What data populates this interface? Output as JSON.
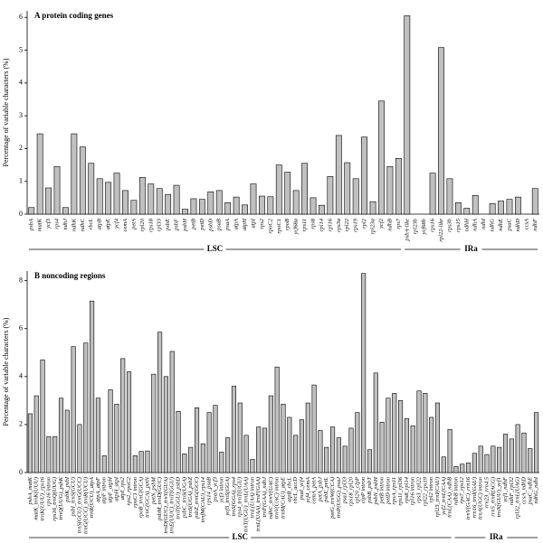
{
  "chart_data": [
    {
      "type": "bar",
      "title": "A protein coding genes",
      "ylabel": "Percentage of variable characters (%)",
      "color": "#c0c0c0",
      "ylim": [
        0,
        6.2
      ],
      "yticks": [
        0,
        1,
        2,
        3,
        4,
        5,
        6
      ],
      "groups": [
        {
          "name": "LSC",
          "categories": [
            "psbA",
            "matK",
            "ycf3",
            "rps4",
            "ndhJ",
            "ndhK",
            "ndhC",
            "rbcL",
            "atpB",
            "atpE",
            "ycf4",
            "cemA",
            "petA",
            "rpl20",
            "rps18",
            "rpl33",
            "psbE",
            "psbF",
            "psbH",
            "petB",
            "petD",
            "psbD",
            "psaB",
            "psaA",
            "atpA",
            "atpH",
            "atpI",
            "rps2",
            "rpoC2",
            "rpoC1",
            "rpoB",
            "ycf68a",
            "rps11",
            "rps8",
            "rpl14",
            "rpl16",
            "rps3a",
            "rpl22",
            "rps19",
            "rpl2",
            "rpl23a",
            "ycf2",
            "ndhB",
            "rps7"
          ],
          "values": [
            0.2,
            2.45,
            0.8,
            1.45,
            0.2,
            2.45,
            2.05,
            1.55,
            1.08,
            0.97,
            1.25,
            0.72,
            0.42,
            1.12,
            0.92,
            0.78,
            0.6,
            0.88,
            0.15,
            0.47,
            0.45,
            0.68,
            0.72,
            0.35,
            0.52,
            0.28,
            0.92,
            0.55,
            0.53,
            1.5,
            1.28,
            0.72,
            1.55,
            0.5,
            0.27,
            1.15,
            2.4,
            1.57,
            1.08,
            2.35,
            0.38,
            3.45,
            1.45,
            1.7
          ]
        },
        {
          "name": "IRa",
          "categories": [
            "psbA-like",
            "rpl23b",
            "ycf68b",
            "rps16",
            "rpl22-like",
            "rps3b",
            "rps15",
            "ndhH",
            "ndhA",
            "ndhI",
            "ndhG",
            "ndhE",
            "psaC",
            "ndhD",
            "ccsA",
            "ndhF"
          ],
          "values": [
            6.05,
            0,
            0,
            1.25,
            5.08,
            1.08,
            0.35,
            0.18,
            0.57,
            0,
            0.32,
            0.4,
            0.45,
            0.52,
            0,
            0.78
          ]
        }
      ]
    },
    {
      "type": "bar",
      "title": "B noncoding regions",
      "ylabel": "Percentage of variable characters (%)",
      "color": "#c0c0c0",
      "ylim": [
        0,
        8.4
      ],
      "yticks": [
        0,
        2,
        4,
        6,
        8
      ],
      "groups": [
        {
          "name": "LSC",
          "categories": [
            "psbA_matK",
            "matK_trnK(UUU)",
            "trnK(UUU)_rps16",
            "rps16 intron",
            "rps16_trnQ(UUG)",
            "trnQ(UUG)_psbK",
            "psbK_psbI",
            "psbI_trnS(GCU)",
            "trnS(GCU)_trnG(UCC)",
            "trnG(UCC)_trnR(UCU)",
            "trnR(UCU)_atpA",
            "atpA_atpF",
            "atpF intron",
            "atpF_atpH",
            "atpH_atpI",
            "atpI_rps2",
            "rps2_rpoC2",
            "rpoC1 intron",
            "rpoB_trnC(GCA)",
            "trnC(GCA)_petN",
            "petN_psbM",
            "psbM_trnD(GUC)",
            "trnD(GUC)_trnY(GUA)",
            "trnE(UUC)_trnT(GGU)",
            "trnT(GGU)_psbD",
            "psbC_trnS(UGA)",
            "trnS(UGA)_psbZ",
            "psbZ_trnG(GCC)",
            "trnfM(CAU)_rps14",
            "rps14_psaB",
            "psaA_ycf3",
            "ycf3 intron",
            "ycf3_trnS(GGA)",
            "trnS(GGA)_rps4",
            "rps4_trnT(UGU)",
            "trnT(UGU)_trnL(UAA)",
            "trnL(UAA) intron",
            "trnL(UAA)_trnF(GAA)",
            "trnF(GAA)_ndhJ",
            "ndhC_trnV(UAC)",
            "trnV(UAC) intron",
            "trnM(CAU)_atpE",
            "atpB_rbcL",
            "rbcL_accD",
            "psaI_ycf4",
            "ycf4_cemA",
            "cemA_petA",
            "petA_psbJ",
            "psbE_petL",
            "petG_trnW(CCA)",
            "trnP(UGG)_psaJ",
            "psaJ_rpl33",
            "rps18_rpl20",
            "rpl20_clpP",
            "clpP intron",
            "psbB_psbT",
            "psbN_psbH",
            "petB intron",
            "petD intron",
            "rpoA_rps11",
            "rps11_rpl36",
            "rps8_rpl14",
            "rpl16 intron",
            "rps3_rpl22",
            "rpl22_rps19",
            "rpl2 intron",
            "rpl23_trnI(CAU)",
            "ycf2_trnL(CAA)",
            "trnL(CAA)_ndhB"
          ],
          "values": [
            2.45,
            3.2,
            4.7,
            1.5,
            1.5,
            3.1,
            2.6,
            5.25,
            2.0,
            5.4,
            7.15,
            3.1,
            0.7,
            3.45,
            2.85,
            4.75,
            4.2,
            0.7,
            0.88,
            0.9,
            4.1,
            5.85,
            4.0,
            5.05,
            2.55,
            0.78,
            1.05,
            2.7,
            1.2,
            2.5,
            2.8,
            0.85,
            1.45,
            3.6,
            2.9,
            1.55,
            0.55,
            1.9,
            1.85,
            3.2,
            4.4,
            2.85,
            2.3,
            1.55,
            2.2,
            2.9,
            3.65,
            1.75,
            1.05,
            1.9,
            1.45,
            1.1,
            1.85,
            2.5,
            8.3,
            0.95,
            4.15,
            2.1,
            3.1,
            3.3,
            3.0,
            2.25,
            1.95,
            3.4,
            3.3,
            2.3,
            2.9,
            0.65,
            1.8
          ]
        },
        {
          "name": "IRa",
          "categories": [
            "ndhB intron",
            "rps7_rps12",
            "trnV(GAC)_rrn16",
            "rrn16_trnI(GAU)",
            "trnA(UGC) intron",
            "rrn23_rrn4.5",
            "rrn5_trnR(ACG)",
            "trnN(GUU)_ycf1",
            "ycf1_ndhF",
            "ndhF_rpl32",
            "rpl32_trnL(UAG)",
            "ccsA_ndhD",
            "psaC_ndhE",
            "ndhG_ndhI"
          ],
          "values": [
            0.25,
            0.35,
            0.4,
            0.8,
            1.1,
            0.75,
            1.1,
            1.05,
            1.6,
            1.4,
            2.0,
            1.65,
            1.0,
            2.5
          ]
        }
      ]
    }
  ]
}
